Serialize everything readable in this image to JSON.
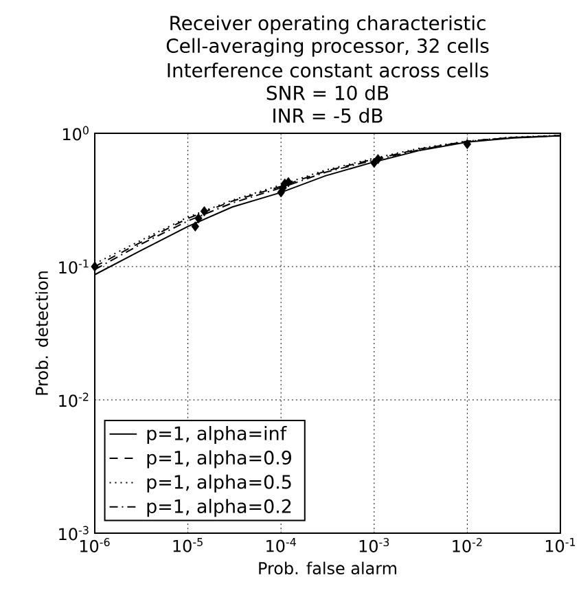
{
  "chart_data": {
    "type": "line",
    "title": "Receiver operating characteristic",
    "subtitle": "Cell-averaging processor, 32 cells",
    "annotations": [
      "Interference constant across cells",
      "SNR = 10 dB",
      "INR = -5 dB"
    ],
    "xlabel": "Prob. false alarm",
    "ylabel": "Prob. detection",
    "log": "xy",
    "grid": true,
    "legend": "bottom left",
    "xlim": [
      1e-06,
      0.1
    ],
    "ylim": [
      0.001,
      1
    ],
    "xticks": [
      {
        "value": 1e-06,
        "label": "10$^{-6}$"
      },
      {
        "value": 1e-05,
        "label": "10$^{-5}$"
      },
      {
        "value": 0.0001,
        "label": "10$^{-4}$"
      },
      {
        "value": 0.001,
        "label": "10$^{-3}$"
      },
      {
        "value": 0.01,
        "label": "10$^{-2}$"
      },
      {
        "value": 0.1,
        "label": "10$^{-1}$"
      }
    ],
    "yticks": [
      {
        "value": 0.001,
        "label": "10$^{-3}$"
      },
      {
        "value": 0.01,
        "label": "10$^{-2}$"
      },
      {
        "value": 0.1,
        "label": "10$^{-1}$"
      },
      {
        "value": 1,
        "label": "10$^{0}$"
      }
    ],
    "series": [
      {
        "name": "p=1, alpha=inf",
        "color": "#000000",
        "line_style": "solid",
        "marker": "none",
        "x": [
          1e-06,
          3e-06,
          1e-05,
          3e-05,
          0.0001,
          0.0003,
          0.001,
          0.003,
          0.01,
          0.03,
          0.1
        ],
        "values": [
          0.087,
          0.13,
          0.2,
          0.28,
          0.36,
          0.48,
          0.61,
          0.74,
          0.86,
          0.92,
          0.96
        ]
      },
      {
        "name": "p=1, alpha=0.9",
        "color": "#000000",
        "line_style": "dashed",
        "marker": "none",
        "x": [
          1e-06,
          3e-06,
          1e-05,
          3e-05,
          0.0001,
          0.0003,
          0.001,
          0.003,
          0.01,
          0.03,
          0.1
        ],
        "values": [
          0.1,
          0.15,
          0.23,
          0.31,
          0.4,
          0.52,
          0.64,
          0.76,
          0.87,
          0.93,
          0.96
        ]
      },
      {
        "name": "p=1, alpha=0.5",
        "color": "#000000",
        "line_style": "dotted",
        "marker": "none",
        "x": [
          1e-06,
          3e-06,
          1e-05,
          3e-05,
          0.0001,
          0.0003,
          0.001,
          0.003,
          0.01,
          0.03,
          0.1
        ],
        "values": [
          0.105,
          0.155,
          0.235,
          0.315,
          0.41,
          0.53,
          0.65,
          0.77,
          0.875,
          0.935,
          0.965
        ]
      },
      {
        "name": "p=1, alpha=0.2",
        "color": "#000000",
        "line_style": "dashdot",
        "marker": "none",
        "x": [
          1e-06,
          3e-06,
          1e-05,
          3e-05,
          0.0001,
          0.0003,
          0.001,
          0.003,
          0.01,
          0.03,
          0.1
        ],
        "values": [
          0.095,
          0.145,
          0.22,
          0.3,
          0.39,
          0.51,
          0.63,
          0.75,
          0.87,
          0.93,
          0.96
        ]
      },
      {
        "type": "scatter",
        "color": "#000000",
        "marker": "diamond",
        "x": [
          1e-06,
          1.2e-05,
          1.3e-05,
          1.5e-05,
          0.0001,
          0.000105,
          0.00011,
          0.00012,
          0.001,
          0.0011,
          0.01
        ],
        "values": [
          0.1,
          0.2,
          0.23,
          0.26,
          0.36,
          0.39,
          0.42,
          0.43,
          0.6,
          0.64,
          0.83
        ]
      }
    ]
  }
}
